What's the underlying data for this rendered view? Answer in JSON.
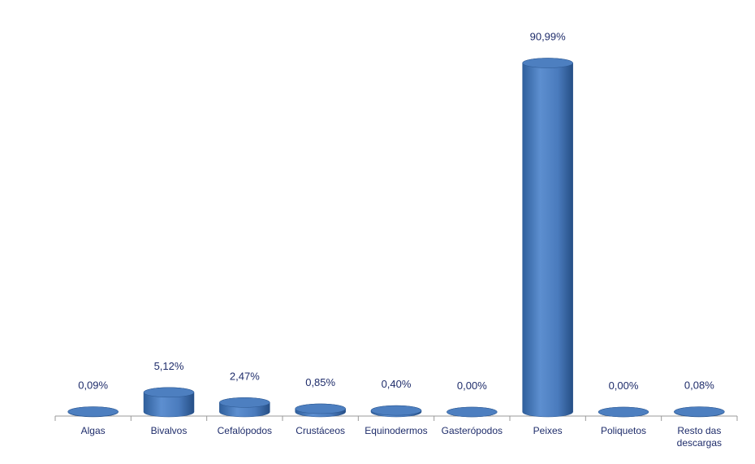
{
  "chart_data": {
    "type": "bar",
    "categories": [
      "Algas",
      "Bivalvos",
      "Cefalópodos",
      "Crustáceos",
      "Equinodermos",
      "Gasterópodos",
      "Peixes",
      "Poliquetos",
      "Resto das descargas"
    ],
    "values": [
      0.09,
      5.12,
      2.47,
      0.85,
      0.4,
      0.0,
      90.99,
      0.0,
      0.08
    ],
    "value_labels": [
      "0,09%",
      "5,12%",
      "2,47%",
      "0,85%",
      "0,40%",
      "0,00%",
      "90,99%",
      "0,00%",
      "0,08%"
    ],
    "color": "#4f81bd"
  }
}
